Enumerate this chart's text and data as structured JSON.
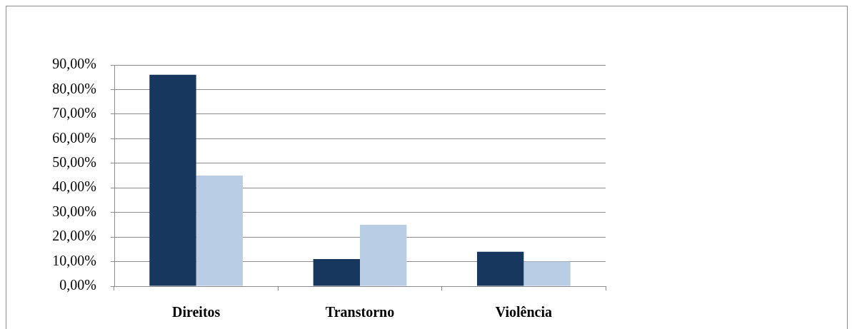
{
  "chart_data": {
    "type": "bar",
    "categories": [
      "Direitos",
      "Transtorno",
      "Violência"
    ],
    "series": [
      {
        "color": "#17375e",
        "values": [
          86,
          11,
          14
        ]
      },
      {
        "color": "#b9cde5",
        "values": [
          45,
          25,
          10
        ]
      }
    ],
    "ylim": [
      0,
      90
    ],
    "yticks": [
      {
        "value": 0,
        "label": "0,00%"
      },
      {
        "value": 10,
        "label": "10,00%"
      },
      {
        "value": 20,
        "label": "20,00%"
      },
      {
        "value": 30,
        "label": "30,00%"
      },
      {
        "value": 40,
        "label": "40,00%"
      },
      {
        "value": 50,
        "label": "50,00%"
      },
      {
        "value": 60,
        "label": "60,00%"
      },
      {
        "value": 70,
        "label": "70,00%"
      },
      {
        "value": 80,
        "label": "80,00%"
      },
      {
        "value": 90,
        "label": "90,00%"
      }
    ],
    "grid": "y"
  }
}
